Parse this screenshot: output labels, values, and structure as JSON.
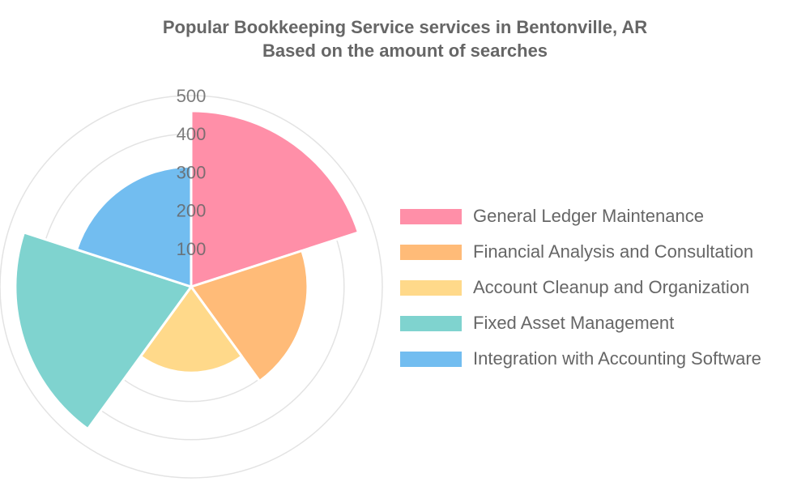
{
  "title": {
    "line1": "Popular Bookkeeping Service services in Bentonville, AR",
    "line2": "Based on the amount of searches"
  },
  "chart_data": {
    "type": "polarArea",
    "title": "Popular Bookkeeping Service services in Bentonville, AR",
    "subtitle": "Based on the amount of searches",
    "categories": [
      "General Ledger Maintenance",
      "Financial Analysis and Consultation",
      "Account Cleanup and Organization",
      "Fixed Asset Management",
      "Integration with Accounting Software"
    ],
    "values": [
      460,
      305,
      225,
      460,
      315
    ],
    "colors": [
      "#ff8fa8",
      "#ffbb78",
      "#ffd98a",
      "#7fd3cf",
      "#72bdf0"
    ],
    "r_ticks": [
      100,
      200,
      300,
      400,
      500
    ],
    "r_range": [
      0,
      500
    ],
    "legend_position": "right",
    "grid": true
  }
}
